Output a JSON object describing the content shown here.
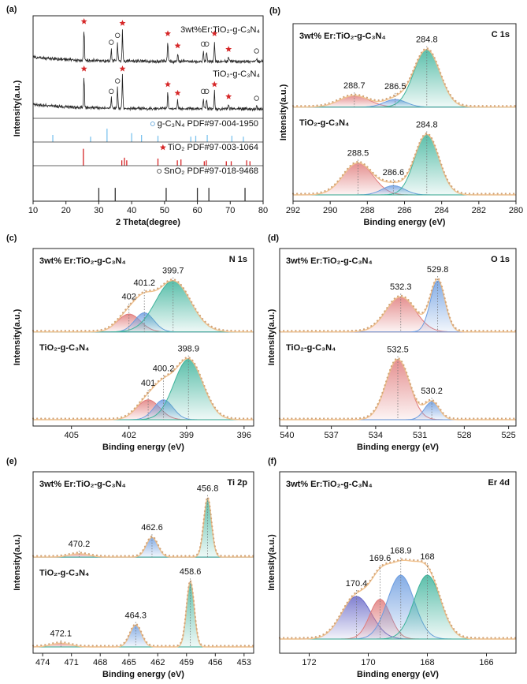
{
  "chart_data": [
    {
      "type": "xrd",
      "panel": "(a)",
      "xlabel": "2 Theta(degree)",
      "ylabel": "Intensity(a.u.)",
      "xlim": [
        10,
        80
      ],
      "xticks": [
        10,
        20,
        30,
        40,
        50,
        60,
        70,
        80
      ],
      "patterns": [
        {
          "name": "3wt%Er:TiO₂-g-C₃N₄",
          "color": "#222222",
          "peaks": [
            {
              "x": 25.5,
              "height": 0.95,
              "marker": "star"
            },
            {
              "x": 33.8,
              "height": 0.35,
              "marker": "circle"
            },
            {
              "x": 35.7,
              "height": 0.55,
              "marker": "circle"
            },
            {
              "x": 37.2,
              "height": 0.9,
              "marker": "star"
            },
            {
              "x": 51.0,
              "height": 0.6,
              "marker": "star"
            },
            {
              "x": 54.0,
              "height": 0.25,
              "marker": "star"
            },
            {
              "x": 61.8,
              "height": 0.3,
              "marker": "circle"
            },
            {
              "x": 62.8,
              "height": 0.3,
              "marker": "circle"
            },
            {
              "x": 65.2,
              "height": 0.6,
              "marker": "star"
            },
            {
              "x": 69.5,
              "height": 0.15,
              "marker": "star"
            },
            {
              "x": 78.0,
              "height": 0.1,
              "marker": "circle"
            }
          ]
        },
        {
          "name": "TiO₂-g-C₃N₄",
          "color": "#222222",
          "peaks": [
            {
              "x": 25.5,
              "height": 0.95,
              "marker": "star"
            },
            {
              "x": 33.8,
              "height": 0.3,
              "marker": "circle"
            },
            {
              "x": 35.7,
              "height": 0.6,
              "marker": "circle"
            },
            {
              "x": 37.2,
              "height": 0.95,
              "marker": "star"
            },
            {
              "x": 51.0,
              "height": 0.5,
              "marker": "star"
            },
            {
              "x": 54.0,
              "height": 0.25,
              "marker": "star"
            },
            {
              "x": 61.8,
              "height": 0.3,
              "marker": "circle"
            },
            {
              "x": 62.8,
              "height": 0.3,
              "marker": "circle"
            },
            {
              "x": 65.2,
              "height": 0.5,
              "marker": "star"
            },
            {
              "x": 69.5,
              "height": 0.15,
              "marker": "star"
            },
            {
              "x": 78.0,
              "height": 0.1,
              "marker": "circle"
            }
          ]
        }
      ],
      "references": [
        {
          "name": "g-C₃N₄ PDF#97-004-1950",
          "marker": "circle-blue",
          "color": "#7cc3ee",
          "sticks": [
            16,
            27.5,
            32.5,
            40,
            43,
            48,
            58,
            59.5,
            63,
            70.5,
            74
          ],
          "heights": [
            0.4,
            0.3,
            0.75,
            0.5,
            0.4,
            0.35,
            0.3,
            0.35,
            0.4,
            0.35,
            0.3
          ]
        },
        {
          "name": "TiO₂ PDF#97-003-1064",
          "marker": "star",
          "color": "#d62728",
          "sticks": [
            25.3,
            37,
            37.8,
            38.5,
            48,
            53.9,
            55,
            62.1,
            62.7,
            68.8,
            70.3,
            75,
            76
          ],
          "heights": [
            0.95,
            0.3,
            0.45,
            0.3,
            0.4,
            0.3,
            0.35,
            0.25,
            0.3,
            0.25,
            0.25,
            0.3,
            0.25
          ]
        },
        {
          "name": "SnO₂ PDF#97-018-9468",
          "marker": "circle",
          "color": "#333333",
          "sticks": [
            30,
            35,
            50.5,
            60,
            63.5,
            74.5
          ],
          "heights": [
            0.5,
            0.5,
            0.5,
            0.5,
            0.5,
            0.5
          ]
        }
      ]
    },
    {
      "type": "xps",
      "panel": "(b)",
      "xlabel": "Binding energy (eV)",
      "ylabel": "Intensity(a.u.)",
      "core": "C 1s",
      "xlim": [
        292,
        280
      ],
      "xticks": [
        292,
        290,
        288,
        286,
        284,
        282,
        280
      ],
      "spectra": [
        {
          "name": "3wt% Er:TiO₂-g-C₃N₄",
          "peaks": [
            {
              "label": "288.7",
              "center": 288.7,
              "height": 0.18,
              "width": 0.8,
              "color": "#e07b7b"
            },
            {
              "label": "286.5",
              "center": 286.5,
              "height": 0.12,
              "width": 0.6,
              "color": "#6d9de0"
            },
            {
              "label": "284.8",
              "center": 284.8,
              "height": 0.9,
              "width": 0.7,
              "color": "#3db39b"
            }
          ]
        },
        {
          "name": "TiO₂-g-C₃N₄",
          "peaks": [
            {
              "label": "288.5",
              "center": 288.5,
              "height": 0.45,
              "width": 0.8,
              "color": "#e07b7b"
            },
            {
              "label": "286.6",
              "center": 286.6,
              "height": 0.13,
              "width": 0.6,
              "color": "#6d9de0"
            },
            {
              "label": "284.8",
              "center": 284.8,
              "height": 0.85,
              "width": 0.65,
              "color": "#3db39b"
            }
          ]
        }
      ]
    },
    {
      "type": "xps",
      "panel": "(c)",
      "xlabel": "Binding energy (eV)",
      "ylabel": "Intensity(a.u.)",
      "core": "N 1s",
      "xlim": [
        407,
        395.5
      ],
      "xticks": [
        405,
        402,
        399,
        396
      ],
      "spectra": [
        {
          "name": "3wt% Er:TiO₂-g-C₃N₄",
          "peaks": [
            {
              "label": "402",
              "center": 402,
              "height": 0.28,
              "width": 0.6,
              "color": "#e07b7b"
            },
            {
              "label": "401.2",
              "center": 401.2,
              "height": 0.3,
              "width": 0.5,
              "color": "#6d9de0"
            },
            {
              "label": "399.7",
              "center": 399.7,
              "height": 0.8,
              "width": 0.9,
              "color": "#3db39b"
            }
          ]
        },
        {
          "name": "TiO₂-g-C₃N₄",
          "peaks": [
            {
              "label": "401",
              "center": 401,
              "height": 0.28,
              "width": 0.6,
              "color": "#e07b7b"
            },
            {
              "label": "400.2",
              "center": 400.2,
              "height": 0.28,
              "width": 0.5,
              "color": "#6d9de0"
            },
            {
              "label": "398.9",
              "center": 398.9,
              "height": 0.85,
              "width": 0.75,
              "color": "#3db39b"
            }
          ]
        }
      ]
    },
    {
      "type": "xps",
      "panel": "(d)",
      "xlabel": "Binding energy (eV)",
      "ylabel": "Intensity(a.u.)",
      "core": "O 1s",
      "xlim": [
        540.5,
        524.5
      ],
      "xticks": [
        540,
        537,
        534,
        531,
        528,
        525
      ],
      "spectra": [
        {
          "name": "3wt% Er:TiO₂-g-C₃N₄",
          "peaks": [
            {
              "label": "532.3",
              "center": 532.3,
              "height": 0.55,
              "width": 1.0,
              "color": "#e07b7b"
            },
            {
              "label": "529.8",
              "center": 529.8,
              "height": 0.8,
              "width": 0.5,
              "color": "#6d9de0"
            }
          ]
        },
        {
          "name": "TiO₂-g-C₃N₄",
          "peaks": [
            {
              "label": "532.5",
              "center": 532.5,
              "height": 0.85,
              "width": 0.8,
              "color": "#e07b7b"
            },
            {
              "label": "530.2",
              "center": 530.2,
              "height": 0.25,
              "width": 0.5,
              "color": "#6d9de0"
            }
          ]
        }
      ]
    },
    {
      "type": "xps",
      "panel": "(e)",
      "xlabel": "Binding energy (eV)",
      "ylabel": "Intensity(a.u.)",
      "core": "Ti 2p",
      "xlim": [
        475,
        452
      ],
      "xticks": [
        474,
        471,
        468,
        465,
        462,
        459,
        456,
        453
      ],
      "spectra": [
        {
          "name": "3wt% Er:TiO₂-g-C₃N₄",
          "peaks": [
            {
              "label": "470.2",
              "center": 470.2,
              "height": 0.05,
              "width": 1.0,
              "color": "#e07b7b"
            },
            {
              "label": "462.6",
              "center": 462.6,
              "height": 0.3,
              "width": 0.6,
              "color": "#6d9de0"
            },
            {
              "label": "456.8",
              "center": 456.8,
              "height": 0.9,
              "width": 0.4,
              "color": "#3db39b"
            }
          ]
        },
        {
          "name": "TiO₂-g-C₃N₄",
          "peaks": [
            {
              "label": "472.1",
              "center": 472.1,
              "height": 0.05,
              "width": 1.0,
              "color": "#e07b7b"
            },
            {
              "label": "464.3",
              "center": 464.3,
              "height": 0.3,
              "width": 0.6,
              "color": "#6d9de0"
            },
            {
              "label": "458.6",
              "center": 458.6,
              "height": 0.9,
              "width": 0.4,
              "color": "#3db39b"
            }
          ]
        }
      ]
    },
    {
      "type": "xps",
      "panel": "(f)",
      "xlabel": "Binding energy (eV)",
      "ylabel": "Intensity(a.u.)",
      "core": "Er 4d",
      "xlim": [
        173,
        165
      ],
      "xticks": [
        172,
        170,
        168,
        166
      ],
      "spectra": [
        {
          "name": "3wt% Er:TiO₂-g-C₃N₄",
          "peaks": [
            {
              "label": "170.4",
              "center": 170.4,
              "height": 0.3,
              "width": 0.5,
              "color": "#6a6ac8"
            },
            {
              "label": "169.6",
              "center": 169.6,
              "height": 0.28,
              "width": 0.35,
              "color": "#e07b7b"
            },
            {
              "label": "168.9",
              "center": 168.9,
              "height": 0.45,
              "width": 0.45,
              "color": "#6d9de0"
            },
            {
              "label": "168",
              "center": 168,
              "height": 0.45,
              "width": 0.45,
              "color": "#3db39b"
            }
          ]
        }
      ]
    }
  ]
}
